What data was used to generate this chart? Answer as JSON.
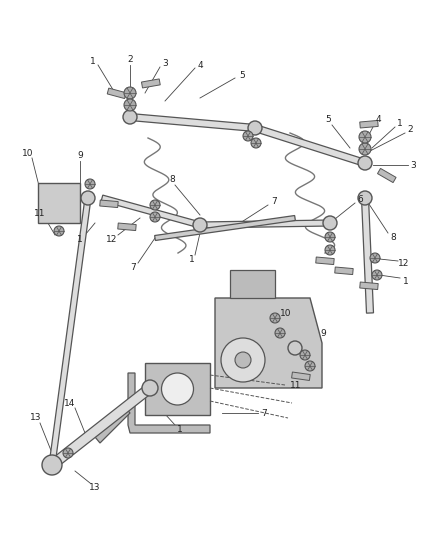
{
  "bg_color": "#ffffff",
  "line_color": "#555555",
  "label_color": "#111111",
  "fig_w": 4.38,
  "fig_h": 5.33,
  "dpi": 100
}
